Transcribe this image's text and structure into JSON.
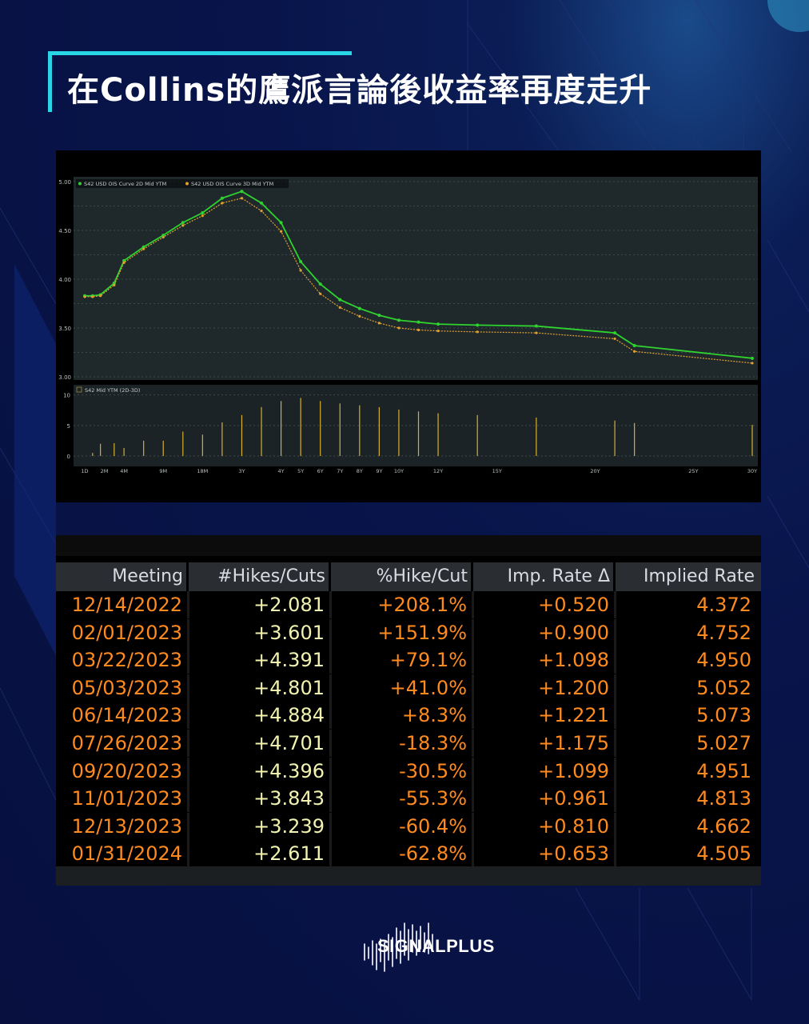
{
  "title": "在Collins的鷹派言論後收益率再度走升",
  "colors": {
    "accent": "#28d6e6",
    "curve2d": "#2fd22f",
    "curve3d": "#e0a030",
    "bar": "#d6b030",
    "tableOrange": "#ff8a1e",
    "tableYellow": "#f2f3b0"
  },
  "chart_data": [
    {
      "type": "line",
      "legend": [
        "S42 USD OIS Curve 2D Mid YTM",
        "S42 USD OIS Curve 3D Mid YTM"
      ],
      "x": [
        0,
        0.4,
        0.8,
        1.5,
        2,
        3,
        4,
        5,
        6,
        7,
        8,
        9,
        10,
        11,
        12,
        13,
        14,
        15,
        16,
        17,
        18,
        20,
        23,
        27,
        28,
        34
      ],
      "ylim": [
        3.0,
        5.0
      ],
      "yticks": [
        "5.00",
        "4.50",
        "4.00",
        "3.50",
        "3.00"
      ],
      "series": [
        {
          "name": "S42 USD OIS Curve 2D Mid YTM",
          "values": [
            3.83,
            3.83,
            3.84,
            3.96,
            4.19,
            4.33,
            4.45,
            4.58,
            4.68,
            4.83,
            4.9,
            4.78,
            4.58,
            4.18,
            3.95,
            3.79,
            3.7,
            3.63,
            3.58,
            3.56,
            3.54,
            3.53,
            3.52,
            3.45,
            3.32,
            3.19
          ]
        },
        {
          "name": "S42 USD OIS Curve 3D Mid YTM",
          "values": [
            3.82,
            3.82,
            3.83,
            3.94,
            4.17,
            4.31,
            4.43,
            4.55,
            4.65,
            4.78,
            4.83,
            4.7,
            4.49,
            4.09,
            3.85,
            3.71,
            3.62,
            3.55,
            3.5,
            3.48,
            3.47,
            3.46,
            3.45,
            3.39,
            3.26,
            3.14
          ]
        }
      ]
    },
    {
      "type": "bar",
      "legend": [
        "S42 Mid YTM (2D-3D)"
      ],
      "ylim": [
        -1,
        11
      ],
      "yticks": [
        "10",
        "5",
        "0"
      ],
      "xticks": [
        "1D",
        "2M",
        "4M",
        "9M",
        "18M",
        "3Y",
        "4Y",
        "5Y",
        "6Y",
        "7Y",
        "8Y",
        "9Y",
        "10Y",
        "12Y",
        "15Y",
        "20Y",
        "25Y",
        "30Y"
      ],
      "x": [
        0.4,
        0.8,
        1.5,
        2,
        3,
        4,
        5,
        6,
        7,
        8,
        9,
        10,
        11,
        12,
        13,
        14,
        15,
        16,
        17,
        18,
        20,
        23,
        27,
        28,
        34
      ],
      "values": [
        0.5,
        2,
        2.1,
        1.3,
        2.5,
        2.5,
        4,
        3.5,
        5.5,
        6.7,
        8,
        9,
        9.5,
        9,
        8.6,
        8.3,
        8,
        7.6,
        7.3,
        7,
        6.7,
        6.3,
        5.8,
        5.4,
        5.1
      ]
    }
  ],
  "table": {
    "headers": [
      "Meeting",
      "#Hikes/Cuts",
      "%Hike/Cut",
      "Imp. Rate Δ",
      "Implied Rate"
    ],
    "rows": [
      {
        "meeting": "12/14/2022",
        "hikes": "+2.081",
        "pct": "+208.1%",
        "imp": "+0.520",
        "rate": "4.372"
      },
      {
        "meeting": "02/01/2023",
        "hikes": "+3.601",
        "pct": "+151.9%",
        "imp": "+0.900",
        "rate": "4.752"
      },
      {
        "meeting": "03/22/2023",
        "hikes": "+4.391",
        "pct": "+79.1%",
        "imp": "+1.098",
        "rate": "4.950"
      },
      {
        "meeting": "05/03/2023",
        "hikes": "+4.801",
        "pct": "+41.0%",
        "imp": "+1.200",
        "rate": "5.052"
      },
      {
        "meeting": "06/14/2023",
        "hikes": "+4.884",
        "pct": "+8.3%",
        "imp": "+1.221",
        "rate": "5.073"
      },
      {
        "meeting": "07/26/2023",
        "hikes": "+4.701",
        "pct": "-18.3%",
        "imp": "+1.175",
        "rate": "5.027"
      },
      {
        "meeting": "09/20/2023",
        "hikes": "+4.396",
        "pct": "-30.5%",
        "imp": "+1.099",
        "rate": "4.951"
      },
      {
        "meeting": "11/01/2023",
        "hikes": "+3.843",
        "pct": "-55.3%",
        "imp": "+0.961",
        "rate": "4.813"
      },
      {
        "meeting": "12/13/2023",
        "hikes": "+3.239",
        "pct": "-60.4%",
        "imp": "+0.810",
        "rate": "4.662"
      },
      {
        "meeting": "01/31/2024",
        "hikes": "+2.611",
        "pct": "-62.8%",
        "imp": "+0.653",
        "rate": "4.505"
      }
    ]
  },
  "footer": {
    "brand": "SIGNALPLUS",
    "logo_icon": "soundwave-logo-icon"
  }
}
